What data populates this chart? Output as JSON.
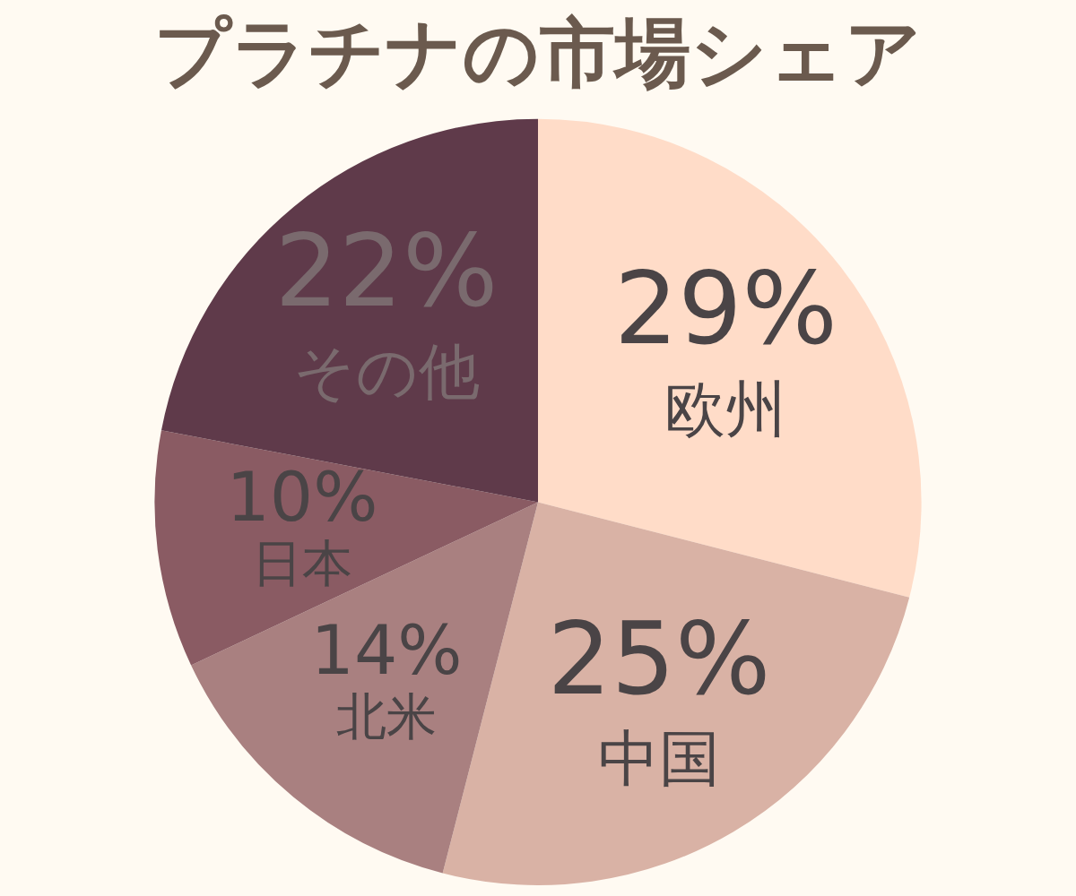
{
  "chart_data": {
    "type": "pie",
    "title": "プラチナの市場シェア",
    "categories": [
      "欧州",
      "中国",
      "北米",
      "日本",
      "その他"
    ],
    "values": [
      29,
      25,
      14,
      10,
      22
    ],
    "colors": [
      "#ffdcc8",
      "#d9b2a5",
      "#a98080",
      "#8a5b63",
      "#5f3a4a"
    ],
    "value_labels": [
      "29%",
      "25%",
      "14%",
      "10%",
      "22%"
    ],
    "legend": false
  }
}
